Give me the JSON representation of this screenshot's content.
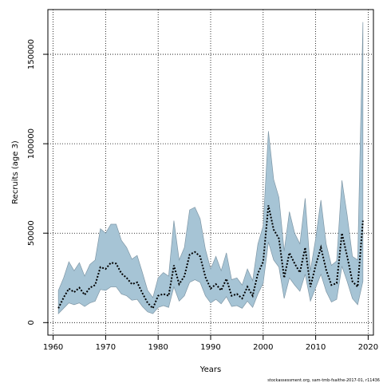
{
  "chart_data": {
    "type": "line",
    "title": "",
    "xlabel": "Years",
    "ylabel": "Recruits (age 3)",
    "xlim": [
      1959,
      2021
    ],
    "ylim": [
      -7000,
      175000
    ],
    "xticks": [
      1960,
      1970,
      1980,
      1990,
      2000,
      2010,
      2020
    ],
    "yticks": [
      0,
      50000,
      100000,
      150000
    ],
    "grid": true,
    "caption": "stockassessment.org, sam-tmb-fsaithe-2017-01, r11436",
    "colors": {
      "band": "#a6c4d5",
      "band_edge": "#7f97a6",
      "line": "#000000"
    },
    "years": [
      1961,
      1962,
      1963,
      1964,
      1965,
      1966,
      1967,
      1968,
      1969,
      1970,
      1971,
      1972,
      1973,
      1974,
      1975,
      1976,
      1977,
      1978,
      1979,
      1980,
      1981,
      1982,
      1983,
      1984,
      1985,
      1986,
      1987,
      1988,
      1989,
      1990,
      1991,
      1992,
      1993,
      1994,
      1995,
      1996,
      1997,
      1998,
      1999,
      2000,
      2001,
      2002,
      2003,
      2004,
      2005,
      2006,
      2007,
      2008,
      2009,
      2010,
      2011,
      2012,
      2013,
      2014,
      2015,
      2016,
      2017,
      2018,
      2019
    ],
    "series": [
      {
        "name": "",
        "values": [
          8000,
          14000,
          19000,
          17000,
          19500,
          15500,
          19500,
          21000,
          31000,
          30000,
          33500,
          33000,
          27500,
          25000,
          21500,
          22500,
          16500,
          11000,
          8000,
          15000,
          16000,
          15000,
          32000,
          21500,
          26000,
          38000,
          39500,
          37000,
          25500,
          19000,
          21500,
          18000,
          24500,
          15000,
          16000,
          13500,
          20000,
          15000,
          27500,
          34000,
          65500,
          52000,
          47000,
          25000,
          39000,
          33000,
          28000,
          42000,
          20000,
          32000,
          42000,
          29500,
          21000,
          22000,
          50000,
          37000,
          23000,
          20000,
          57000
        ]
      },
      {
        "name": "",
        "values": [
          5000,
          8000,
          11000,
          10000,
          11000,
          9000,
          11000,
          12000,
          18500,
          18000,
          20000,
          20000,
          16000,
          15000,
          12500,
          13000,
          9000,
          6000,
          5000,
          8500,
          9500,
          8500,
          20000,
          12000,
          15000,
          22500,
          24000,
          22500,
          15000,
          11000,
          13000,
          10500,
          14500,
          9000,
          9500,
          8000,
          12000,
          8500,
          16000,
          22000,
          45000,
          35000,
          31000,
          13500,
          25000,
          21000,
          17500,
          27000,
          12000,
          19500,
          27000,
          17500,
          11500,
          13000,
          31500,
          23000,
          13500,
          10000,
          23000
        ]
      },
      {
        "name": "",
        "values": [
          18000,
          25000,
          34000,
          29000,
          33500,
          26000,
          32500,
          35000,
          52500,
          50000,
          55000,
          55000,
          46000,
          42000,
          35500,
          37500,
          28000,
          18000,
          14000,
          25000,
          28000,
          26000,
          57000,
          35000,
          42000,
          63000,
          64500,
          58000,
          41000,
          30000,
          37000,
          29000,
          39000,
          24000,
          25000,
          21000,
          30000,
          23500,
          44000,
          54000,
          107000,
          80000,
          70000,
          40000,
          62000,
          50000,
          44000,
          69500,
          29000,
          47000,
          68500,
          44000,
          32000,
          34500,
          79500,
          60000,
          37000,
          35000,
          168000
        ]
      }
    ]
  }
}
